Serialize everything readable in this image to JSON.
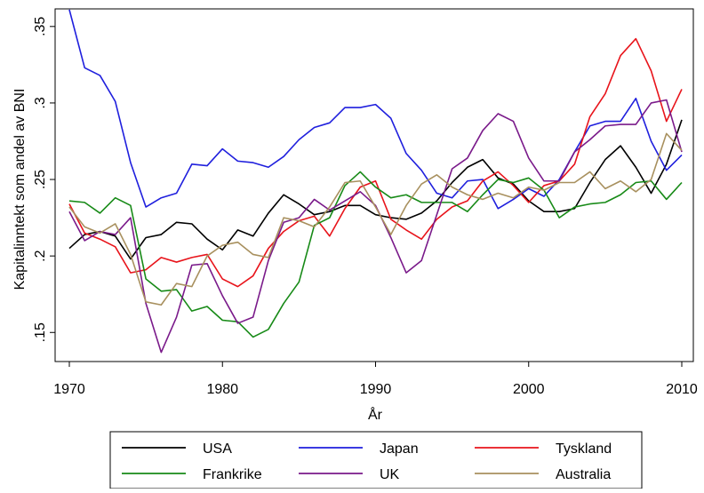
{
  "chart_data": {
    "type": "line",
    "xlabel": "År",
    "ylabel": "Kapitalinntekt som andel av BNI",
    "xlim": [
      1970,
      2010
    ],
    "ylim": [
      0.15,
      0.35
    ],
    "x_ticks": [
      "1970",
      "1980",
      "1990",
      "2000",
      "2010"
    ],
    "y_ticks": [
      ".15",
      ".2",
      ".25",
      ".3",
      ".35"
    ],
    "grid": false,
    "legend_position": "bottom",
    "x": [
      1970,
      1971,
      1972,
      1973,
      1974,
      1975,
      1976,
      1977,
      1978,
      1979,
      1980,
      1981,
      1982,
      1983,
      1984,
      1985,
      1986,
      1987,
      1988,
      1989,
      1990,
      1991,
      1992,
      1993,
      1994,
      1995,
      1996,
      1997,
      1998,
      1999,
      2000,
      2001,
      2002,
      2003,
      2004,
      2005,
      2006,
      2007,
      2008,
      2009,
      2010
    ],
    "series": [
      {
        "name": "USA",
        "color": "#000000",
        "values": [
          0.205,
          0.214,
          0.216,
          0.213,
          0.198,
          0.212,
          0.214,
          0.222,
          0.221,
          0.211,
          0.204,
          0.217,
          0.213,
          0.228,
          0.24,
          0.234,
          0.227,
          0.229,
          0.233,
          0.233,
          0.227,
          0.225,
          0.224,
          0.228,
          0.236,
          0.248,
          0.258,
          0.263,
          0.251,
          0.247,
          0.236,
          0.229,
          0.229,
          0.231,
          0.248,
          0.263,
          0.272,
          0.258,
          0.241,
          0.26,
          0.289
        ]
      },
      {
        "name": "Japan",
        "color": "#1f1fdd",
        "values": [
          0.361,
          0.323,
          0.318,
          0.301,
          0.261,
          0.232,
          0.238,
          0.241,
          0.26,
          0.259,
          0.27,
          0.262,
          0.261,
          0.258,
          0.265,
          0.276,
          0.284,
          0.287,
          0.297,
          0.297,
          0.299,
          0.29,
          0.267,
          0.256,
          0.241,
          0.238,
          0.249,
          0.25,
          0.231,
          0.237,
          0.244,
          0.239,
          0.25,
          0.268,
          0.285,
          0.288,
          0.288,
          0.303,
          0.275,
          0.256,
          0.266
        ]
      },
      {
        "name": "Tyskland",
        "color": "#e8141b",
        "values": [
          0.234,
          0.215,
          0.211,
          0.206,
          0.189,
          0.191,
          0.199,
          0.196,
          0.199,
          0.201,
          0.185,
          0.18,
          0.187,
          0.205,
          0.216,
          0.223,
          0.226,
          0.213,
          0.231,
          0.245,
          0.249,
          0.224,
          0.217,
          0.211,
          0.224,
          0.232,
          0.236,
          0.249,
          0.255,
          0.246,
          0.235,
          0.246,
          0.249,
          0.26,
          0.291,
          0.306,
          0.331,
          0.342,
          0.321,
          0.288,
          0.309
        ]
      },
      {
        "name": "Frankrike",
        "color": "#178a17",
        "values": [
          0.236,
          0.235,
          0.228,
          0.238,
          0.233,
          0.185,
          0.177,
          0.178,
          0.164,
          0.167,
          0.158,
          0.157,
          0.147,
          0.152,
          0.169,
          0.183,
          0.22,
          0.225,
          0.246,
          0.255,
          0.245,
          0.238,
          0.24,
          0.235,
          0.235,
          0.235,
          0.229,
          0.24,
          0.25,
          0.248,
          0.251,
          0.243,
          0.225,
          0.232,
          0.234,
          0.235,
          0.24,
          0.248,
          0.249,
          0.237,
          0.248
        ]
      },
      {
        "name": "UK",
        "color": "#7a1a8a",
        "values": [
          0.229,
          0.21,
          0.216,
          0.214,
          0.225,
          0.169,
          0.137,
          0.16,
          0.194,
          0.195,
          0.174,
          0.156,
          0.16,
          0.197,
          0.222,
          0.225,
          0.237,
          0.23,
          0.236,
          0.242,
          0.233,
          0.212,
          0.189,
          0.197,
          0.227,
          0.257,
          0.264,
          0.282,
          0.293,
          0.288,
          0.264,
          0.249,
          0.249,
          0.268,
          0.276,
          0.285,
          0.286,
          0.286,
          0.3,
          0.302,
          0.268
        ]
      },
      {
        "name": "Australia",
        "color": "#a8905e",
        "values": [
          0.232,
          0.219,
          0.215,
          0.221,
          0.201,
          0.17,
          0.168,
          0.182,
          0.18,
          0.2,
          0.207,
          0.209,
          0.201,
          0.199,
          0.225,
          0.223,
          0.219,
          0.232,
          0.248,
          0.249,
          0.232,
          0.214,
          0.233,
          0.247,
          0.253,
          0.245,
          0.24,
          0.237,
          0.241,
          0.238,
          0.245,
          0.243,
          0.248,
          0.248,
          0.255,
          0.244,
          0.249,
          0.242,
          0.25,
          0.28,
          0.269
        ]
      }
    ]
  }
}
